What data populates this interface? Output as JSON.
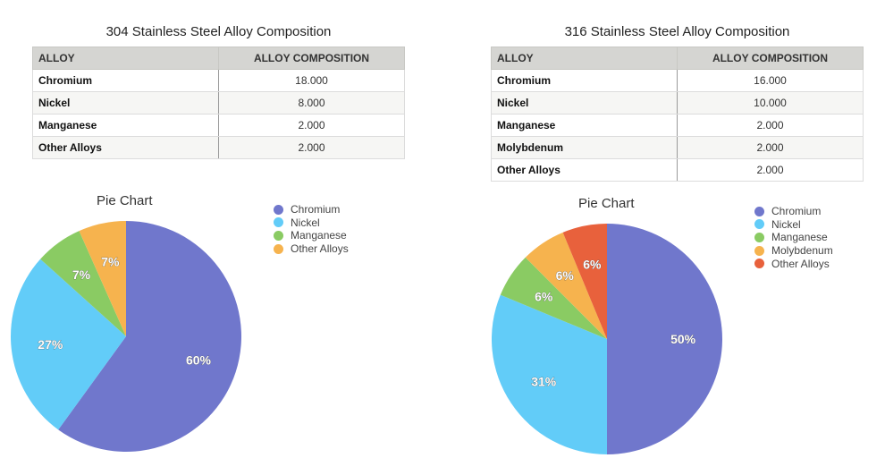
{
  "colors": {
    "Chromium": "#7077cc",
    "Nickel": "#62ccf8",
    "Manganese": "#8acb63",
    "Molybdenum": "#f6b34e",
    "Other Alloys": "#f6b34e",
    "Other Alloys 316": "#e8613c"
  },
  "chart_data": [
    {
      "id": "alloy304",
      "type": "pie",
      "table_title": "304 Stainless Steel Alloy Composition",
      "table_headers": [
        "ALLOY",
        "ALLOY COMPOSITION"
      ],
      "rows": [
        {
          "alloy": "Chromium",
          "composition": "18.000"
        },
        {
          "alloy": "Nickel",
          "composition": "8.000"
        },
        {
          "alloy": "Manganese",
          "composition": "2.000"
        },
        {
          "alloy": "Other Alloys",
          "composition": "2.000"
        }
      ],
      "title": "Pie Chart",
      "categories": [
        "Chromium",
        "Nickel",
        "Manganese",
        "Other Alloys"
      ],
      "values": [
        18,
        8,
        2,
        2
      ],
      "labels": [
        "60%",
        "27%",
        "7%",
        "7%"
      ],
      "colors": [
        "#7077cc",
        "#62ccf8",
        "#8acb63",
        "#f6b34e"
      ],
      "legend": "top-right"
    },
    {
      "id": "alloy316",
      "type": "pie",
      "table_title": "316 Stainless Steel Alloy Composition",
      "table_headers": [
        "ALLOY",
        "ALLOY COMPOSITION"
      ],
      "rows": [
        {
          "alloy": "Chromium",
          "composition": "16.000"
        },
        {
          "alloy": "Nickel",
          "composition": "10.000"
        },
        {
          "alloy": "Manganese",
          "composition": "2.000"
        },
        {
          "alloy": "Molybdenum",
          "composition": "2.000"
        },
        {
          "alloy": "Other Alloys",
          "composition": "2.000"
        }
      ],
      "title": "Pie Chart",
      "categories": [
        "Chromium",
        "Nickel",
        "Manganese",
        "Molybdenum",
        "Other Alloys"
      ],
      "values": [
        16,
        10,
        2,
        2,
        2
      ],
      "labels": [
        "50%",
        "31%",
        "6%",
        "6%",
        "6%"
      ],
      "colors": [
        "#7077cc",
        "#62ccf8",
        "#8acb63",
        "#f6b34e",
        "#e8613c"
      ],
      "legend": "top-right"
    }
  ]
}
